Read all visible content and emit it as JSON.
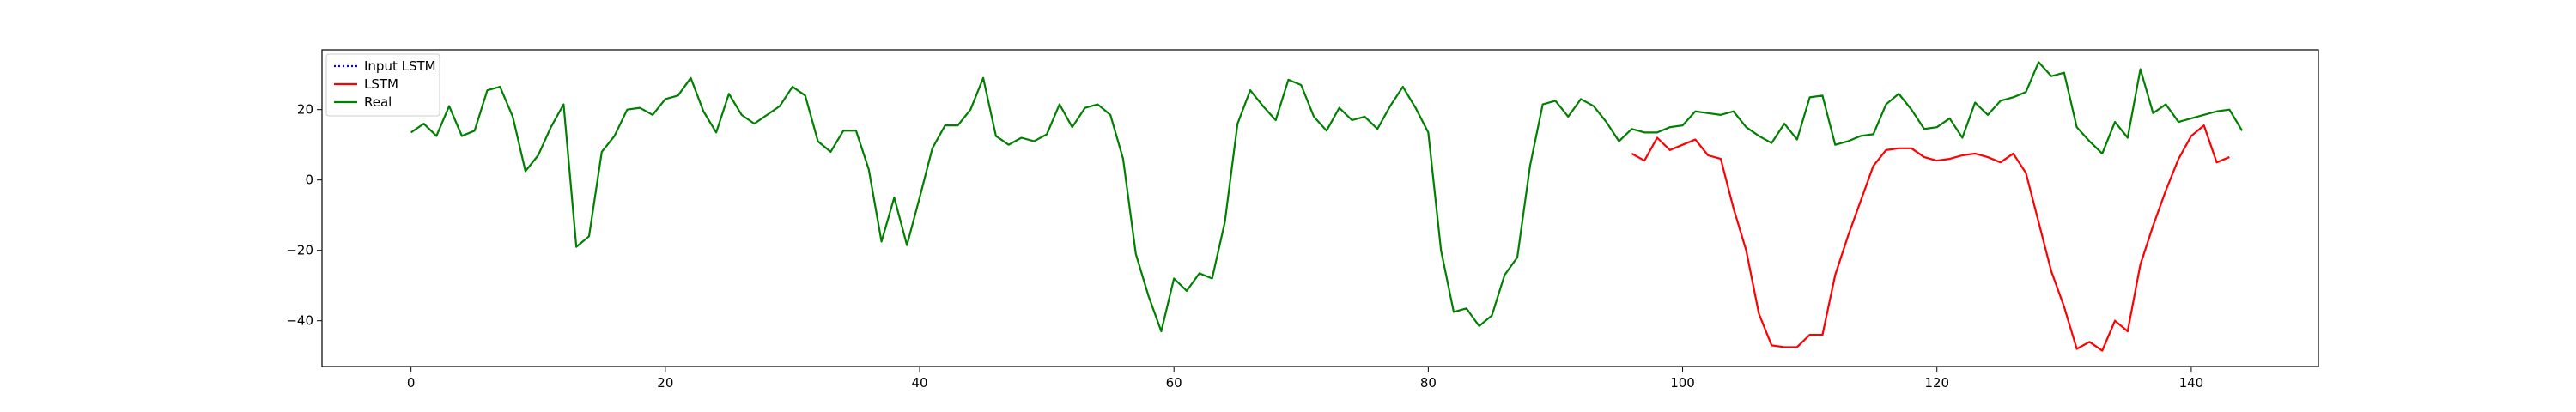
{
  "chart_data": {
    "type": "line",
    "title": "",
    "xlabel": "",
    "ylabel": "",
    "xlim": [
      -7,
      150
    ],
    "ylim": [
      -53,
      37
    ],
    "xticks": [
      0,
      20,
      40,
      60,
      80,
      100,
      120,
      140
    ],
    "yticks": [
      -40,
      -20,
      0,
      20
    ],
    "grid": false,
    "legend_position": "top-left",
    "series": [
      {
        "name": "Input LSTM",
        "color": "#0000ff",
        "style": "dotted",
        "x": [],
        "y": []
      },
      {
        "name": "LSTM",
        "color": "#ff0000",
        "style": "solid",
        "x_start": 96,
        "y": [
          7.5,
          5.5,
          12,
          8.5,
          10,
          11.5,
          7,
          6,
          -8,
          -20,
          -38,
          -47,
          -47.5,
          -47.5,
          -44,
          -44,
          -27,
          -16,
          -6,
          4,
          8.5,
          9,
          9,
          6.5,
          5.5,
          6,
          7,
          7.5,
          6.5,
          5,
          7.5,
          2,
          -12,
          -26,
          -36,
          -48,
          -46,
          -48.5,
          -40,
          -43,
          -24,
          -13,
          -3,
          6,
          12.5,
          15.5,
          5,
          6.5
        ]
      },
      {
        "name": "Real",
        "color": "#008000",
        "style": "solid",
        "x_start": 0,
        "y": [
          13.5,
          16,
          12.5,
          21,
          12.5,
          14,
          25.5,
          26.5,
          18,
          2.5,
          7,
          15,
          21.5,
          -19,
          -16,
          8,
          12.5,
          20,
          20.5,
          18.5,
          23,
          24,
          29,
          19.5,
          13.5,
          24.5,
          18.5,
          16,
          18.5,
          21,
          26.5,
          24,
          11,
          8,
          14,
          14,
          3,
          -17.5,
          -5,
          -18.5,
          -5,
          9,
          15.5,
          15.5,
          20,
          29,
          12.5,
          10,
          12,
          11,
          13,
          21.5,
          15,
          20.5,
          21.5,
          18.5,
          6,
          -21,
          -33,
          -43,
          -28,
          -31.5,
          -26.5,
          -28,
          -12,
          16,
          25.5,
          21,
          17,
          28.5,
          27,
          18,
          14,
          20.5,
          17,
          18,
          14.5,
          21,
          26.5,
          20.5,
          13.5,
          -20,
          -37.5,
          -36.5,
          -41.5,
          -38.5,
          -27,
          -22,
          4,
          21.5,
          22.5,
          18,
          23,
          21,
          16.5,
          11,
          14.5,
          13.5,
          13.5,
          15,
          15.5,
          19.5,
          19,
          18.5,
          19.5,
          15,
          12.5,
          10.5,
          16,
          11.5,
          23.5,
          24,
          10,
          11,
          12.5,
          13,
          21.5,
          24.5,
          20,
          14.5,
          15,
          17.5,
          12,
          22,
          18.5,
          22.5,
          23.5,
          25,
          33.5,
          29.5,
          30.5,
          15,
          11,
          7.5,
          16.5,
          12,
          31.5,
          19,
          21.5,
          16.5,
          17.5,
          18.5,
          19.5,
          20,
          14
        ]
      }
    ]
  }
}
